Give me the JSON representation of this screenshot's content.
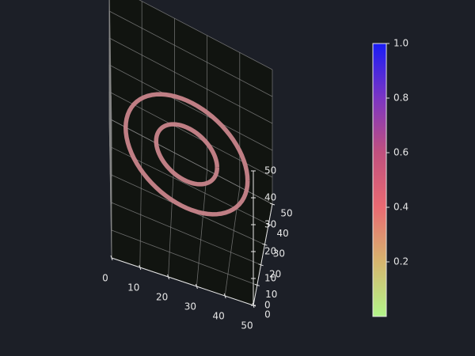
{
  "chart_data": {
    "type": "3d-line",
    "title": "",
    "xlabel": "",
    "ylabel": "",
    "zlabel": "",
    "xlim": [
      0,
      50
    ],
    "ylim": [
      0,
      50
    ],
    "zlim": [
      0,
      50
    ],
    "x_ticks": [
      0,
      10,
      20,
      30,
      40,
      50
    ],
    "y_ticks": [
      0,
      10,
      20,
      30,
      40,
      50
    ],
    "z_ticks": [
      0,
      10,
      20,
      30,
      40,
      50
    ],
    "grid": true,
    "pane_color": "#111410",
    "grid_color": "#8a8a8a",
    "line_color": "#c9848b",
    "series": [
      {
        "shape": "ring",
        "center": [
          25,
          25,
          25
        ],
        "radius": 20,
        "value": 0.55
      },
      {
        "shape": "ring",
        "center": [
          25,
          25,
          25
        ],
        "radius": 10,
        "value": 0.55
      }
    ],
    "colorbar": {
      "range": [
        0,
        1.0
      ],
      "ticks": [
        0.2,
        0.4,
        0.6,
        0.8,
        1.0
      ],
      "tick_labels": [
        "0.2",
        "0.4",
        "0.6",
        "0.8",
        "1.0"
      ],
      "colors": [
        "#b3f58a",
        "#d6b56e",
        "#e96a72",
        "#c0507e",
        "#7b35c3",
        "#1a1cf5"
      ]
    }
  }
}
